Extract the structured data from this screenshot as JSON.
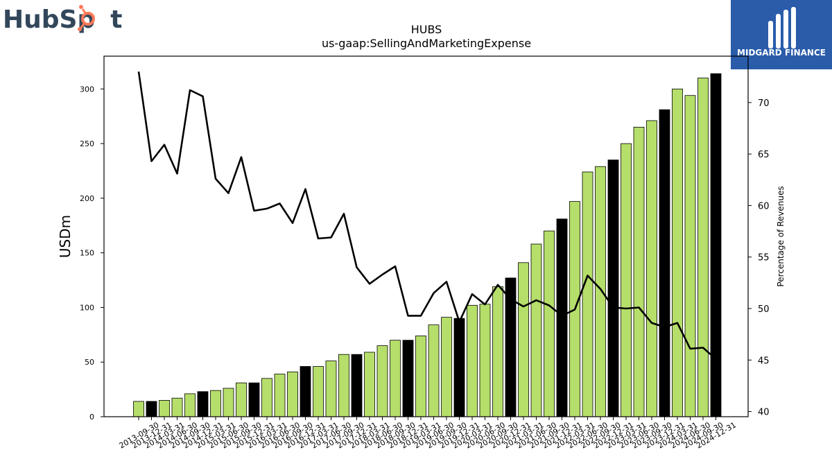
{
  "logos": {
    "left_text_a": "Hub",
    "left_text_b": "Sp",
    "left_text_c": "t",
    "left_accent": "#ff7a59",
    "left_color": "#33475b",
    "right_text": "MIDGARD FINANCE",
    "right_bg": "#2a5caa"
  },
  "chart_data": {
    "type": "bar",
    "title": "HUBS",
    "subtitle": "us-gaap:SellingAndMarketingExpense",
    "ylabel": "USDm",
    "y2label": "Percentage of Revenues",
    "ylim": [
      0,
      330
    ],
    "y2lim": [
      39.5,
      74.5
    ],
    "yticks": [
      0,
      50,
      100,
      150,
      200,
      250,
      300
    ],
    "y2ticks": [
      40,
      45,
      50,
      55,
      60,
      65,
      70
    ],
    "colors": {
      "bar_quarter": "#b5de6a",
      "bar_year_end": "#000000",
      "line": "#000000"
    },
    "categories": [
      "2013-09-30",
      "2013-12-31",
      "2014-03-31",
      "2014-06-30",
      "2014-09-30",
      "2014-12-31",
      "2015-03-31",
      "2015-06-30",
      "2015-09-30",
      "2015-12-31",
      "2016-03-31",
      "2016-06-30",
      "2016-09-30",
      "2016-12-31",
      "2017-03-31",
      "2017-06-30",
      "2017-09-30",
      "2017-12-31",
      "2018-03-31",
      "2018-06-30",
      "2018-09-30",
      "2018-12-31",
      "2019-03-31",
      "2019-06-30",
      "2019-09-30",
      "2019-12-31",
      "2020-03-31",
      "2020-06-30",
      "2020-09-30",
      "2020-12-31",
      "2021-03-31",
      "2021-06-30",
      "2021-09-30",
      "2021-12-31",
      "2022-03-31",
      "2022-06-30",
      "2022-09-30",
      "2022-12-31",
      "2023-03-31",
      "2023-06-30",
      "2023-09-30",
      "2023-12-31",
      "2024-03-31",
      "2024-06-30",
      "2024-09-30",
      "2024-12-31"
    ],
    "series": [
      {
        "name": "Selling and Marketing Expense",
        "axis": "left",
        "values": [
          14,
          14,
          15,
          17,
          21,
          23,
          24,
          26,
          31,
          31,
          35,
          39,
          41,
          46,
          46,
          51,
          57,
          57,
          59,
          65,
          70,
          70,
          74,
          84,
          91,
          90,
          102,
          103,
          119,
          127,
          141,
          158,
          170,
          181,
          197,
          224,
          229,
          235,
          250,
          265,
          271,
          281,
          300,
          294,
          310,
          314
        ],
        "year_end": [
          false,
          true,
          false,
          false,
          false,
          true,
          false,
          false,
          false,
          true,
          false,
          false,
          false,
          true,
          false,
          false,
          false,
          true,
          false,
          false,
          false,
          true,
          false,
          false,
          false,
          true,
          false,
          false,
          false,
          true,
          false,
          false,
          false,
          true,
          false,
          false,
          false,
          true,
          false,
          false,
          false,
          true,
          false,
          false,
          false,
          true
        ]
      },
      {
        "name": "Percentage of Revenues",
        "axis": "right",
        "values": [
          73.0,
          64.3,
          65.9,
          63.1,
          71.2,
          70.6,
          62.6,
          61.2,
          64.7,
          59.5,
          59.7,
          60.2,
          58.3,
          61.6,
          56.8,
          56.9,
          59.2,
          54.0,
          52.4,
          53.3,
          54.1,
          49.3,
          49.3,
          51.5,
          52.6,
          48.7,
          51.4,
          50.4,
          52.3,
          50.9,
          50.2,
          50.8,
          50.3,
          49.3,
          49.9,
          53.2,
          51.9,
          50.1,
          50.0,
          50.1,
          48.6,
          48.2,
          48.6,
          46.1,
          46.2,
          45.1
        ]
      }
    ]
  }
}
